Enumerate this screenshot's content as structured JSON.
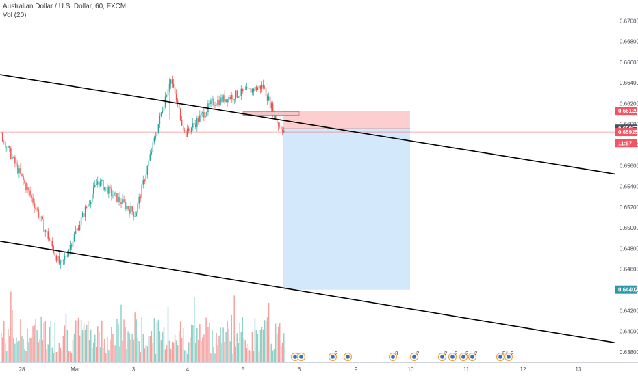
{
  "header": {
    "symbol_line": "Australian Dollar / U.S. Dollar, 60, FXCM",
    "volume_line": "Vol (20)"
  },
  "colors": {
    "up": "#26a69a",
    "down": "#ef5350",
    "vol_up": "#8fd1c9",
    "vol_down": "#f5a19f",
    "trendline": "#000000",
    "stop_zone": "#fcc9cb",
    "target_zone": "#cfe5fb",
    "price_line": "#f7525f",
    "target_tag": "#2e9aa8"
  },
  "chart_data": {
    "type": "candlestick",
    "ylim": [
      0.637,
      0.672
    ],
    "y_ticks": [
      "0.67000",
      "0.66800",
      "0.66600",
      "0.66400",
      "0.66200",
      "0.66000",
      "0.65800",
      "0.65600",
      "0.65400",
      "0.65200",
      "0.65000",
      "0.64800",
      "0.64600",
      "0.64400",
      "0.64200",
      "0.64000",
      "0.63800"
    ],
    "x_ticks": [
      "28",
      "Mar",
      "3",
      "4",
      "5",
      "6",
      "9",
      "10",
      "11",
      "12",
      "13"
    ],
    "key_points": [
      {
        "label": "28 open",
        "price": 0.6591
      },
      {
        "label": "28 low",
        "price": 0.6525
      },
      {
        "label": "Mar swing low",
        "price": 0.6462
      },
      {
        "label": "3 mid",
        "price": 0.6545
      },
      {
        "label": "3 late",
        "price": 0.6513
      },
      {
        "label": "4 spike high",
        "price": 0.6645
      },
      {
        "label": "4 low",
        "price": 0.659
      },
      {
        "label": "4-5 range",
        "price": 0.6621
      },
      {
        "label": "5 high",
        "price": 0.6637
      },
      {
        "label": "5 drop",
        "price": 0.6602
      },
      {
        "label": "last",
        "price": 0.65925
      }
    ],
    "price_labels": [
      {
        "label": "0.66129",
        "price": 0.66129,
        "kind": "stop"
      },
      {
        "label": "0.65957",
        "price": 0.65957,
        "kind": "entry"
      },
      {
        "label": "0.65925",
        "price": 0.65925,
        "kind": "last"
      },
      {
        "label": "11:57",
        "price": 0.65818,
        "kind": "countdown"
      },
      {
        "label": "0.64402",
        "price": 0.64402,
        "kind": "target"
      }
    ],
    "position": {
      "entry": 0.65957,
      "stop": 0.66129,
      "target": 0.64402,
      "side": "short"
    },
    "channel_lines": [
      {
        "name": "upper",
        "p1": {
          "date": "27 Feb",
          "price": 0.6648
        },
        "p2": {
          "date": "13 Mar",
          "price": 0.6552
        }
      },
      {
        "name": "lower",
        "p1": {
          "date": "27 Feb",
          "price": 0.6487
        },
        "p2": {
          "date": "13 Mar",
          "price": 0.6389
        }
      }
    ],
    "volume_scale": "relative",
    "calendar_event_counts": [
      "",
      "",
      "2",
      "",
      "3",
      "2",
      "2",
      "2",
      "2",
      "2",
      "51",
      "2"
    ]
  }
}
